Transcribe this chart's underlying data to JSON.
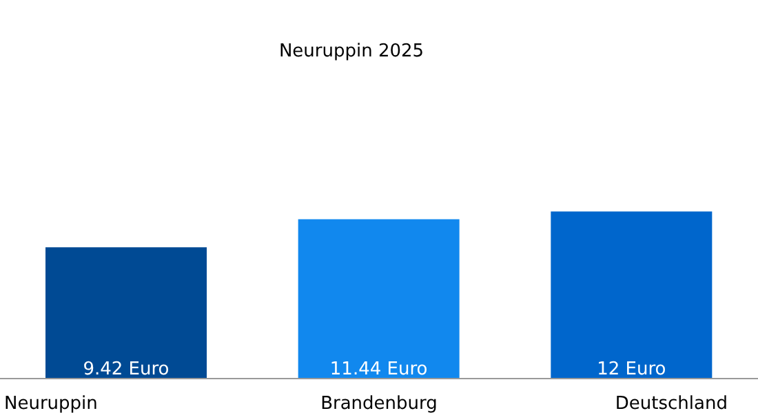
{
  "chart_data": {
    "type": "bar",
    "title": "Neuruppin 2025",
    "categories": [
      "Neuruppin",
      "Brandenburg",
      "Deutschland"
    ],
    "values": [
      9.42,
      11.44,
      12
    ],
    "colors": [
      "#004a94",
      "#1188ee",
      "#0066cc"
    ],
    "value_labels": [
      "9.42 Euro",
      "11.44 Euro",
      "12 Euro"
    ],
    "grid": false,
    "legend": false
  }
}
